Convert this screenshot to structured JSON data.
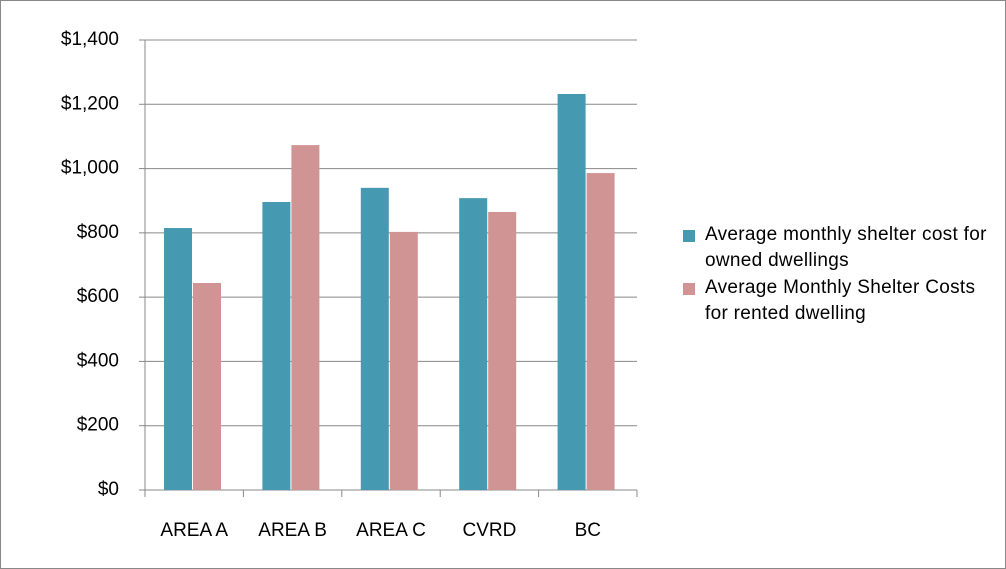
{
  "chart_data": {
    "type": "bar",
    "categories": [
      "AREA A",
      "AREA B",
      "AREA C",
      "CVRD",
      "BC"
    ],
    "series": [
      {
        "name": "Average monthly shelter cost for owned dwellings",
        "color": "#4599b1",
        "values": [
          815,
          896,
          940,
          908,
          1232
        ]
      },
      {
        "name": "Average Monthly Shelter Costs for rented dwelling",
        "color": "#d09494",
        "values": [
          644,
          1073,
          803,
          865,
          986
        ]
      }
    ],
    "ylim": [
      0,
      1400
    ],
    "yticks": [
      {
        "value": 0,
        "label": "$0"
      },
      {
        "value": 200,
        "label": "$200"
      },
      {
        "value": 400,
        "label": "$400"
      },
      {
        "value": 600,
        "label": "$600"
      },
      {
        "value": 800,
        "label": "$800"
      },
      {
        "value": 1000,
        "label": "$1,000"
      },
      {
        "value": 1200,
        "label": "$1,200"
      },
      {
        "value": 1400,
        "label": "$1,400"
      }
    ],
    "grid": true,
    "legend": "right"
  }
}
